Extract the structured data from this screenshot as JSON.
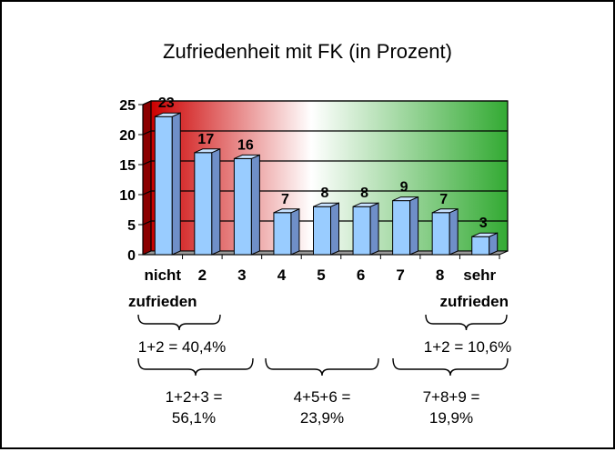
{
  "chart_data": {
    "type": "bar",
    "title": "Zufriedenheit mit FK (in Prozent)",
    "categories": [
      "nicht",
      "2",
      "3",
      "4",
      "5",
      "6",
      "7",
      "8",
      "sehr"
    ],
    "category_sublabels": [
      "zufrieden",
      "",
      "",
      "",
      "",
      "",
      "",
      "",
      "zufrieden"
    ],
    "values": [
      23,
      17,
      16,
      7,
      8,
      8,
      9,
      7,
      3
    ],
    "data_labels": [
      "23",
      "17",
      "16",
      "7",
      "8",
      "8",
      "9",
      "7",
      "3"
    ],
    "yticks": [
      "0",
      "5",
      "10",
      "15",
      "20",
      "25"
    ],
    "ylim": [
      0,
      25
    ],
    "grid": true,
    "legend": "none",
    "colors": {
      "bar_front": "#99CCFF",
      "bar_side": "#6F8FC8",
      "bar_top": "#C8E2FF",
      "bg_left": "#CC0000",
      "bg_mid": "#FFFFFF",
      "bg_right": "#33AA33"
    }
  },
  "annotations": {
    "group_12_low": "1+2 = 40,4%",
    "group_12_high": "1+2 = 10,6%",
    "group_123_line1": "1+2+3 =",
    "group_123_line2": "56,1%",
    "group_456_line1": "4+5+6 =",
    "group_456_line2": "23,9%",
    "group_789_line1": "7+8+9 =",
    "group_789_line2": "19,9%"
  }
}
